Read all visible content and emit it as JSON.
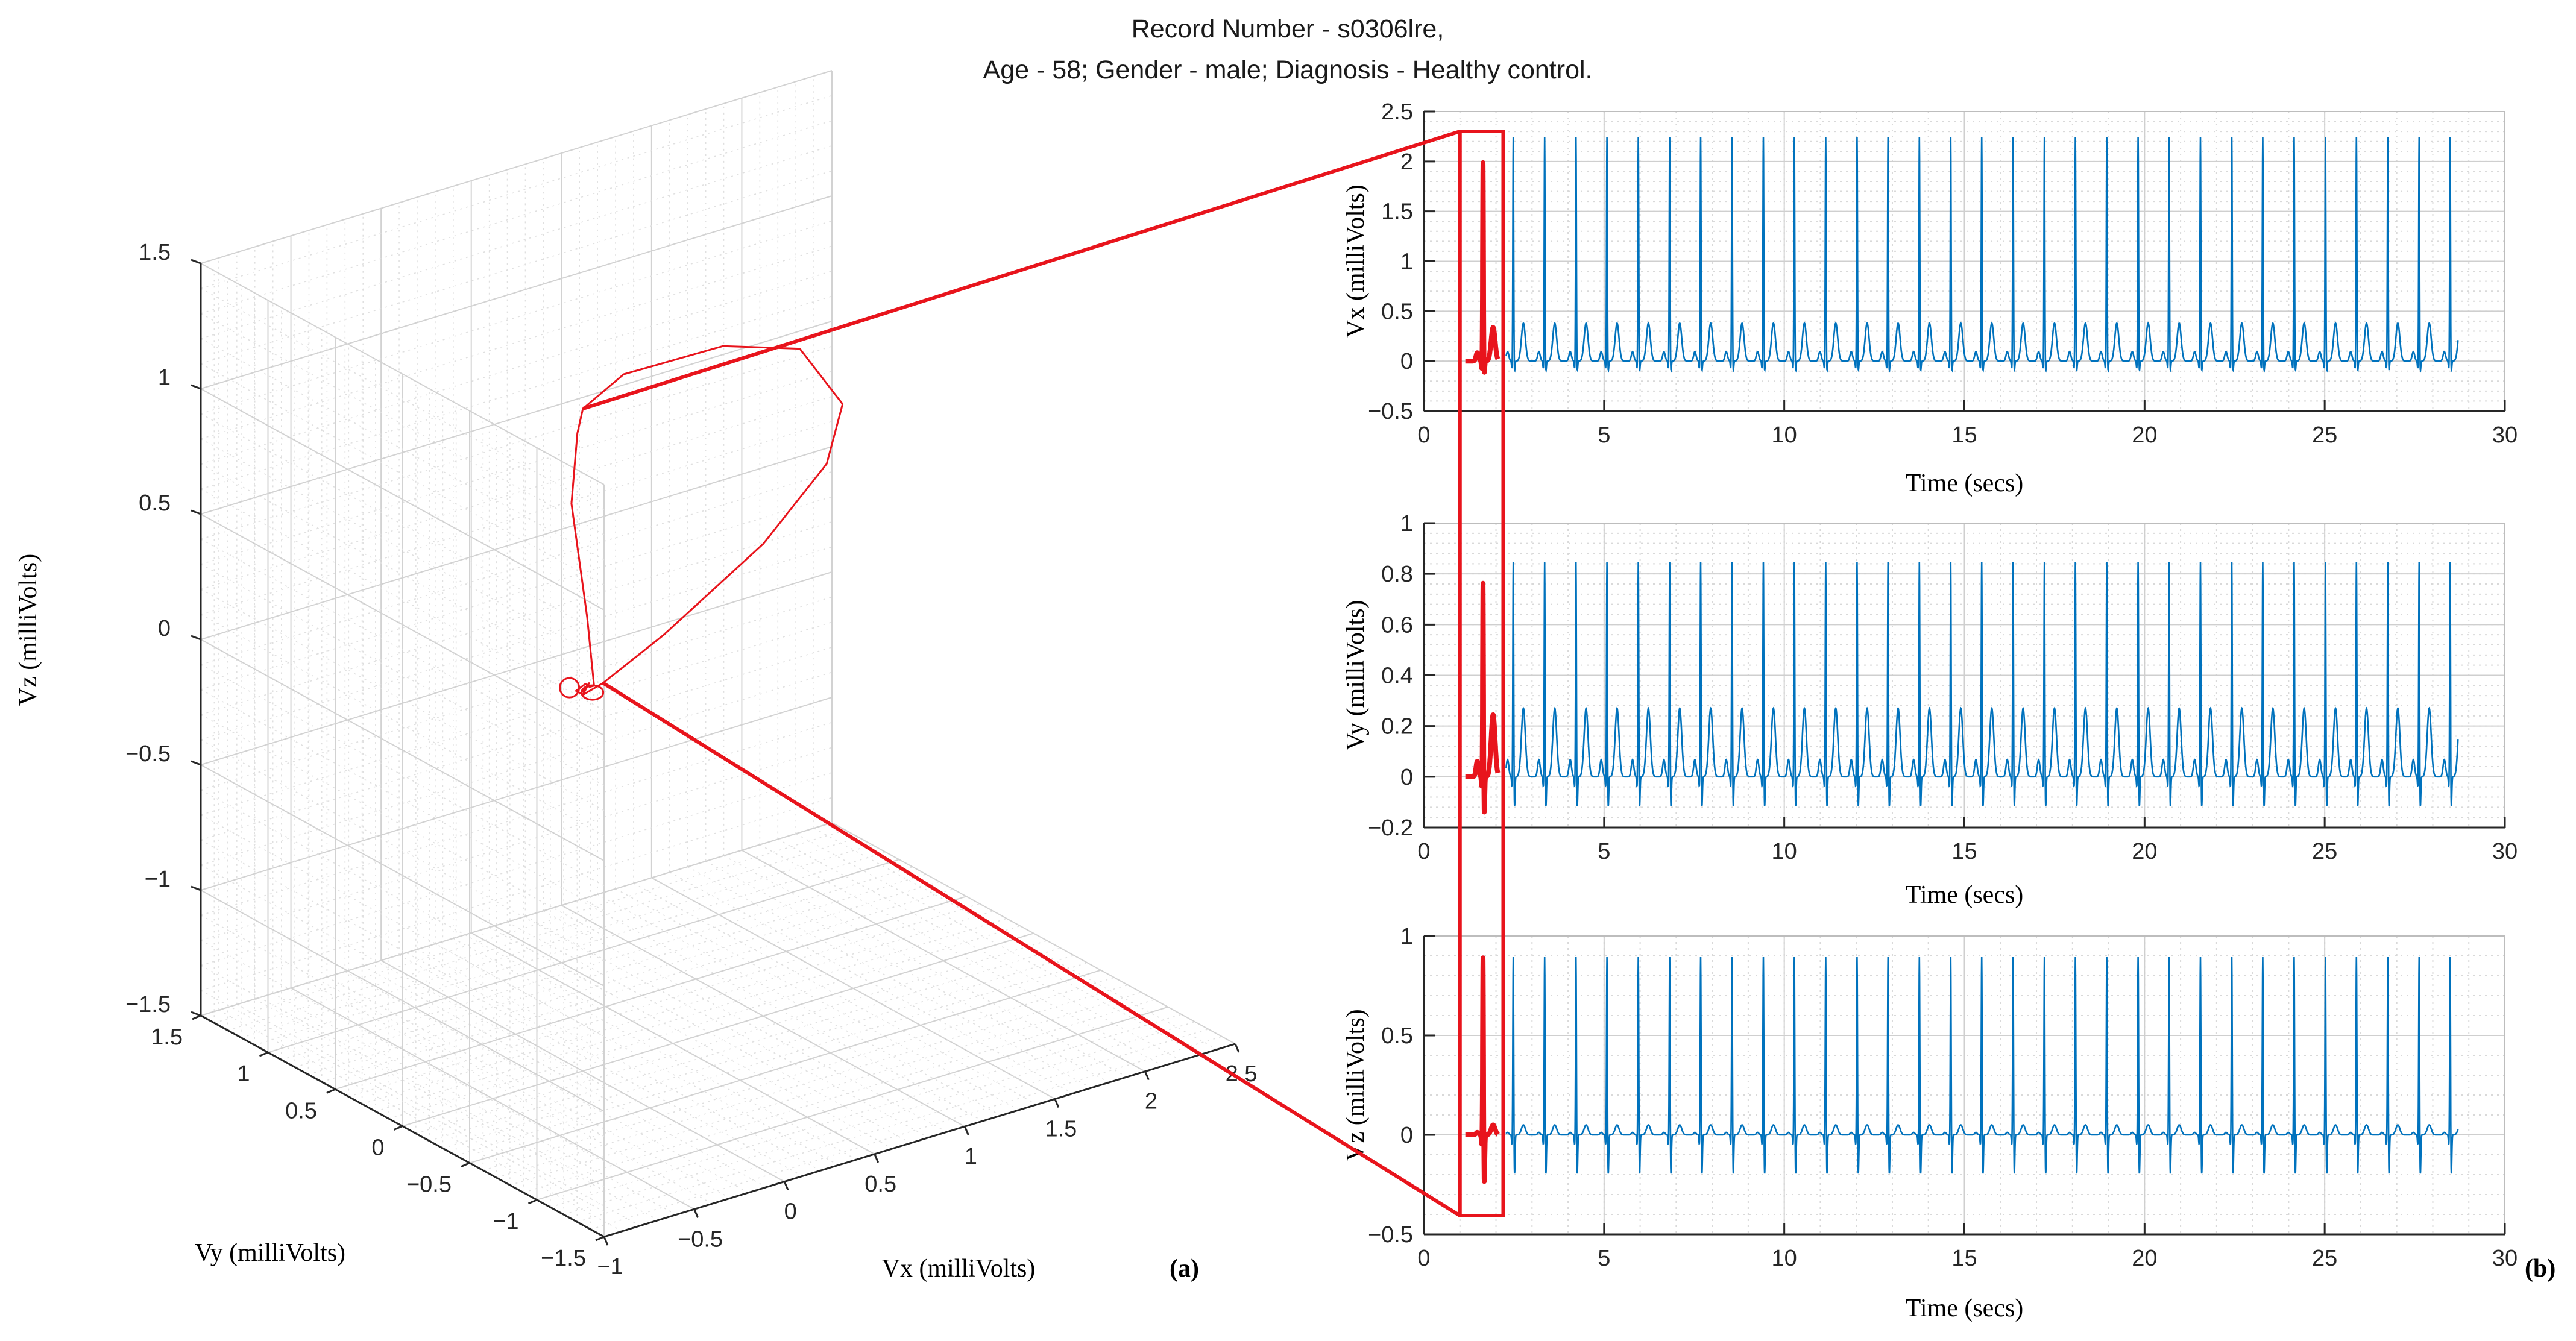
{
  "title": {
    "line1": "Record Number - s0306lre,",
    "line2": "Age - 58; Gender -  male; Diagnosis -  Healthy control."
  },
  "colors": {
    "signal": "#0072BD",
    "highlight": "#E8141C",
    "grid": "#d9d9d9",
    "axis": "#262626"
  },
  "panel_labels": {
    "a": "(a)",
    "b": "(b)"
  },
  "chart_data": [
    {
      "id": "vcg-3d",
      "type": "line3d",
      "title": "",
      "xlabel": "Vx (milliVolts)",
      "ylabel": "Vy (milliVolts)",
      "zlabel": "Vz (milliVolts)",
      "xlim": [
        -1,
        2.5
      ],
      "ylim": [
        -1.5,
        1.5
      ],
      "zlim": [
        -1.5,
        1.5
      ],
      "xticks": [
        "−1",
        "−0.5",
        "0",
        "0.5",
        "1",
        "1.5",
        "2",
        "2.5"
      ],
      "yticks": [
        "−1.5",
        "−1",
        "−0.5",
        "0",
        "0.5",
        "1",
        "1.5"
      ],
      "zticks": [
        "−1.5",
        "−1",
        "−0.5",
        "0",
        "0.5",
        "1",
        "1.5"
      ],
      "grid": true,
      "loop_xyz": [
        [
          0.0,
          0.0,
          0.0
        ],
        [
          0.05,
          0.02,
          0.03
        ],
        [
          0.02,
          0.04,
          -0.01
        ],
        [
          -0.03,
          0.01,
          0.02
        ],
        [
          0.0,
          -0.02,
          0.05
        ],
        [
          0.06,
          0.03,
          0.01
        ],
        [
          0.1,
          0.05,
          0.0
        ],
        [
          -0.05,
          -0.1,
          0.35
        ],
        [
          -0.1,
          -0.05,
          0.8
        ],
        [
          -0.03,
          0.0,
          1.05
        ],
        [
          0.15,
          0.2,
          1.05
        ],
        [
          0.6,
          0.5,
          1.0
        ],
        [
          1.3,
          0.7,
          0.9
        ],
        [
          1.8,
          0.8,
          0.75
        ],
        [
          2.0,
          0.75,
          0.5
        ],
        [
          1.8,
          0.6,
          0.35
        ],
        [
          1.3,
          0.4,
          0.2
        ],
        [
          0.6,
          0.2,
          0.05
        ],
        [
          0.15,
          0.05,
          0.0
        ],
        [
          0.0,
          0.0,
          0.0
        ]
      ]
    },
    {
      "id": "vx",
      "type": "line",
      "xlabel": "Time (secs)",
      "ylabel": "Vx (milliVolts)",
      "xlim": [
        0,
        30
      ],
      "ylim": [
        -0.5,
        2.5
      ],
      "xticks": [
        "0",
        "5",
        "10",
        "15",
        "20",
        "25",
        "30"
      ],
      "yticks": [
        "−0.5",
        "0",
        "0.5",
        "1",
        "1.5",
        "2",
        "2.5"
      ],
      "grid": true,
      "beat_times": [
        1.64,
        2.48,
        3.35,
        4.22,
        5.08,
        5.95,
        6.82,
        7.68,
        8.55,
        9.42,
        10.28,
        11.15,
        12.02,
        12.88,
        13.75,
        14.62,
        15.48,
        16.35,
        17.22,
        18.08,
        18.95,
        19.82,
        20.68,
        21.55,
        22.42,
        23.28,
        24.15,
        25.02,
        25.88,
        26.75,
        27.62,
        28.48
      ],
      "r_peak": 2.25,
      "q_depth": -0.08,
      "s_depth": -0.1,
      "t_height": 0.38,
      "signal_end": 28.7,
      "highlight_window": [
        1.0,
        2.2
      ],
      "highlight_r_peak": 2.0
    },
    {
      "id": "vy",
      "type": "line",
      "xlabel": "Time (secs)",
      "ylabel": "Vy (milliVolts)",
      "xlim": [
        0,
        30
      ],
      "ylim": [
        -0.2,
        1
      ],
      "xticks": [
        "0",
        "5",
        "10",
        "15",
        "20",
        "25",
        "30"
      ],
      "yticks": [
        "−0.2",
        "0",
        "0.2",
        "0.4",
        "0.6",
        "0.8",
        "1"
      ],
      "grid": true,
      "beat_times": [
        1.64,
        2.48,
        3.35,
        4.22,
        5.08,
        5.95,
        6.82,
        7.68,
        8.55,
        9.42,
        10.28,
        11.15,
        12.02,
        12.88,
        13.75,
        14.62,
        15.48,
        16.35,
        17.22,
        18.08,
        18.95,
        19.82,
        20.68,
        21.55,
        22.42,
        23.28,
        24.15,
        25.02,
        25.88,
        26.75,
        27.62,
        28.48
      ],
      "r_peak": 0.85,
      "q_depth": -0.04,
      "s_depth": -0.12,
      "t_height": 0.27,
      "signal_end": 28.7,
      "highlight_window": [
        1.0,
        2.2
      ],
      "highlight_r_peak": 0.77
    },
    {
      "id": "vz",
      "type": "line",
      "xlabel": "Time (secs)",
      "ylabel": "Vz (milliVolts)",
      "xlim": [
        0,
        30
      ],
      "ylim": [
        -0.5,
        1
      ],
      "xticks": [
        "0",
        "5",
        "10",
        "15",
        "20",
        "25",
        "30"
      ],
      "yticks": [
        "−0.5",
        "0",
        "0.5",
        "1"
      ],
      "grid": true,
      "beat_times": [
        1.64,
        2.48,
        3.35,
        4.22,
        5.08,
        5.95,
        6.82,
        7.68,
        8.55,
        9.42,
        10.28,
        11.15,
        12.02,
        12.88,
        13.75,
        14.62,
        15.48,
        16.35,
        17.22,
        18.08,
        18.95,
        19.82,
        20.68,
        21.55,
        22.42,
        23.28,
        24.15,
        25.02,
        25.88,
        26.75,
        27.62,
        28.48
      ],
      "r_peak": 0.9,
      "q_depth": -0.05,
      "s_depth": -0.2,
      "t_height": 0.05,
      "signal_end": 28.7,
      "highlight_window": [
        1.0,
        2.2
      ],
      "highlight_r_peak": 0.9
    }
  ]
}
